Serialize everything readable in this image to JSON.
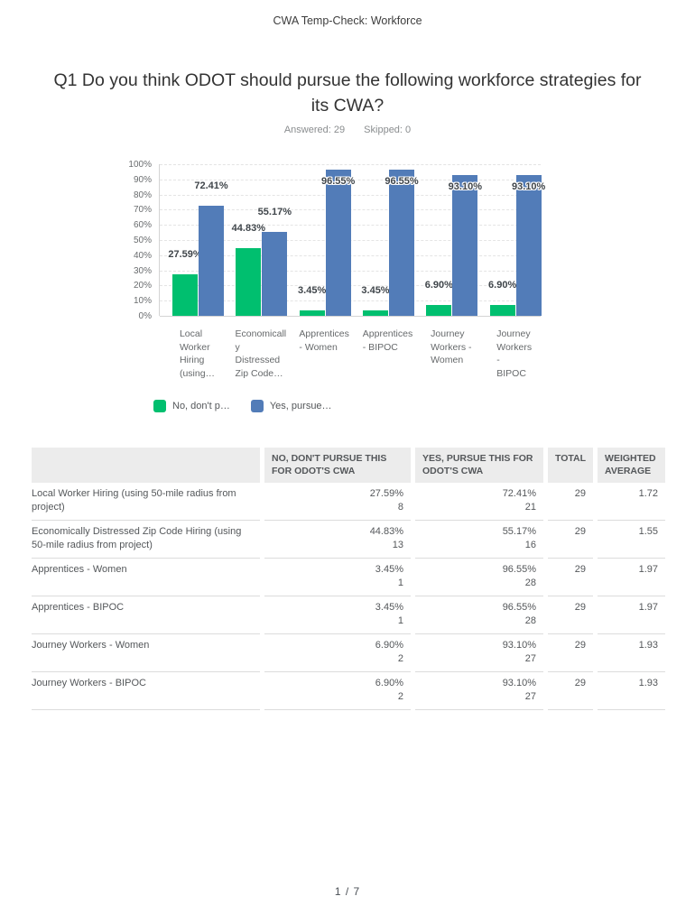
{
  "page": {
    "header": "CWA Temp-Check: Workforce",
    "footer": "1 / 7"
  },
  "question": {
    "title": "Q1 Do you think ODOT should pursue the following workforce strategies for its CWA?",
    "answered_label": "Answered:",
    "answered_value": "29",
    "skipped_label": "Skipped:",
    "skipped_value": "0"
  },
  "chart_data": {
    "type": "bar",
    "title": "",
    "xlabel": "",
    "ylabel": "",
    "ylim": [
      0,
      100
    ],
    "grid": true,
    "legend_position": "bottom",
    "yticks": [
      "100%",
      "90%",
      "80%",
      "70%",
      "60%",
      "50%",
      "40%",
      "30%",
      "20%",
      "10%",
      "0%"
    ],
    "categories": [
      "Local Worker Hiring (using 50-mile radius from project)",
      "Economically Distressed Zip Code Hiring (using 50-mile radius from project)",
      "Apprentices - Women",
      "Apprentices - BIPOC",
      "Journey Workers - Women",
      "Journey Workers - BIPOC"
    ],
    "tick_label_lines": [
      [
        "Local",
        "Worker",
        "Hiring",
        "(using…"
      ],
      [
        "Economicall",
        "y",
        "Distressed",
        "Zip Code…"
      ],
      [
        "Apprentices",
        "- Women"
      ],
      [
        "Apprentices",
        "- BIPOC"
      ],
      [
        "Journey",
        "Workers -",
        "Women"
      ],
      [
        "Journey",
        "Workers -",
        "BIPOC"
      ]
    ],
    "series": [
      {
        "name": "No, don't p…",
        "color": "#00BF6F",
        "values": [
          27.59,
          44.83,
          3.45,
          3.45,
          6.9,
          6.9
        ]
      },
      {
        "name": "Yes, pursue…",
        "color": "#527CB8",
        "values": [
          72.41,
          55.17,
          96.55,
          96.55,
          93.1,
          93.1
        ]
      }
    ]
  },
  "table": {
    "headers": [
      "",
      "NO, DON'T PURSUE THIS FOR ODOT'S CWA",
      "YES, PURSUE THIS FOR ODOT'S CWA",
      "TOTAL",
      "WEIGHTED AVERAGE"
    ],
    "rows": [
      {
        "label": "Local Worker Hiring (using 50-mile radius from project)",
        "no_pct": "27.59%",
        "no_count": "8",
        "yes_pct": "72.41%",
        "yes_count": "21",
        "total": "29",
        "weighted_average": "1.72"
      },
      {
        "label": "Economically Distressed Zip Code Hiring (using 50-mile radius from project)",
        "no_pct": "44.83%",
        "no_count": "13",
        "yes_pct": "55.17%",
        "yes_count": "16",
        "total": "29",
        "weighted_average": "1.55"
      },
      {
        "label": "Apprentices - Women",
        "no_pct": "3.45%",
        "no_count": "1",
        "yes_pct": "96.55%",
        "yes_count": "28",
        "total": "29",
        "weighted_average": "1.97"
      },
      {
        "label": "Apprentices - BIPOC",
        "no_pct": "3.45%",
        "no_count": "1",
        "yes_pct": "96.55%",
        "yes_count": "28",
        "total": "29",
        "weighted_average": "1.97"
      },
      {
        "label": "Journey Workers - Women",
        "no_pct": "6.90%",
        "no_count": "2",
        "yes_pct": "93.10%",
        "yes_count": "27",
        "total": "29",
        "weighted_average": "1.93"
      },
      {
        "label": "Journey Workers - BIPOC",
        "no_pct": "6.90%",
        "no_count": "2",
        "yes_pct": "93.10%",
        "yes_count": "27",
        "total": "29",
        "weighted_average": "1.93"
      }
    ]
  }
}
